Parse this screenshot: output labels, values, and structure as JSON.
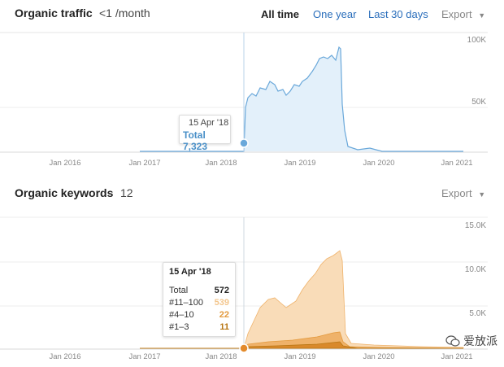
{
  "traffic": {
    "title": "Organic traffic",
    "summary": "<1 /month",
    "ranges": [
      "All time",
      "One year",
      "Last 30 days"
    ],
    "export_label": "Export",
    "tooltip": {
      "date": "15 Apr '18",
      "total_label": "Total 7,323"
    },
    "colors": {
      "line": "#6aa8da",
      "fill": "#e3f0fa"
    }
  },
  "keywords": {
    "title": "Organic keywords",
    "count": "12",
    "export_label": "Export",
    "tooltip": {
      "date": "15 Apr '18",
      "rows": [
        {
          "label": "Total",
          "value": "572",
          "color": "#222222"
        },
        {
          "label": "#11–100",
          "value": "539",
          "color": "#f3c68d"
        },
        {
          "label": "#4–10",
          "value": "22",
          "color": "#e39a3e"
        },
        {
          "label": "#1–3",
          "value": "11",
          "color": "#b87613"
        }
      ]
    },
    "colors": {
      "outer": "#f9dcb8",
      "mid": "#efb26a",
      "inner": "#d9892b"
    }
  },
  "watermark": {
    "text": "爱放派"
  },
  "chart_data": [
    {
      "type": "area",
      "x_labels": [
        "Jan 2016",
        "Jan 2017",
        "Jan 2018",
        "Jan 2019",
        "Jan 2020",
        "Jan 2021"
      ],
      "y_ticks": [
        "100K",
        "50K"
      ],
      "ylim": [
        0,
        100000
      ],
      "grid": true,
      "series": [
        {
          "x": [
            "2016-07",
            "2017-01",
            "2017-06",
            "2018-01",
            "2018-04",
            "2018-05",
            "2018-07",
            "2018-10",
            "2019-01",
            "2019-03",
            "2019-05",
            "2019-06",
            "2019-07",
            "2019-08",
            "2019-10",
            "2020-01",
            "2020-06",
            "2021-01"
          ],
          "values": [
            200,
            300,
            400,
            500,
            7323,
            40000,
            55000,
            52000,
            60000,
            78000,
            86000,
            92000,
            5000,
            1500,
            2500,
            800,
            800,
            800
          ]
        }
      ]
    },
    {
      "type": "area",
      "x_labels": [
        "Jan 2016",
        "Jan 2017",
        "Jan 2018",
        "Jan 2019",
        "Jan 2020",
        "Jan 2021"
      ],
      "y_ticks": [
        "15.0K",
        "10.0K",
        "5.0K"
      ],
      "ylim": [
        0,
        15000
      ],
      "grid": true,
      "series": [
        {
          "x": [
            "2017-01",
            "2018-01",
            "2018-04",
            "2018-06",
            "2018-09",
            "2019-01",
            "2019-04",
            "2019-06",
            "2019-07",
            "2019-09",
            "2020-01",
            "2020-06",
            "2021-01"
          ],
          "values": [
            100,
            150,
            572,
            4500,
            5500,
            5600,
            9500,
            11500,
            900,
            500,
            400,
            300,
            200
          ]
        },
        {
          "x": [
            "2017-01",
            "2018-01",
            "2018-04",
            "2018-06",
            "2018-09",
            "2019-01",
            "2019-04",
            "2019-06",
            "2019-07",
            "2019-09",
            "2020-01",
            "2020-06",
            "2021-01"
          ],
          "values": [
            30,
            40,
            33,
            900,
            1100,
            1200,
            1600,
            1900,
            300,
            200,
            150,
            100,
            80
          ]
        },
        {
          "x": [
            "2017-01",
            "2018-01",
            "2018-04",
            "2018-06",
            "2018-09",
            "2019-01",
            "2019-04",
            "2019-06",
            "2019-07",
            "2019-09",
            "2020-01",
            "2020-06",
            "2021-01"
          ],
          "values": [
            10,
            12,
            11,
            350,
            450,
            500,
            700,
            850,
            100,
            60,
            50,
            40,
            30
          ]
        }
      ]
    }
  ]
}
